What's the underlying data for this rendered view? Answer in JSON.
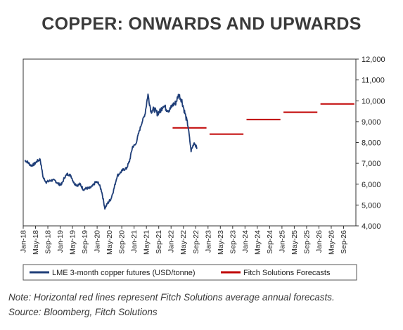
{
  "title": "COPPER: ONWARDS AND UPWARDS",
  "note_line1": "Note: Horizontal red lines represent Fitch Solutions average annual forecasts.",
  "note_line2": "Source: Bloomberg, Fitch Solutions",
  "chart_data": {
    "type": "line",
    "x_tick_labels": [
      "Jan-18",
      "May-18",
      "Sep-18",
      "Jan-19",
      "May-19",
      "Sep-19",
      "Jan-20",
      "May-20",
      "Sep-20",
      "Jan-21",
      "May-21",
      "Sep-21",
      "Jan-22",
      "May-22",
      "Sep-22",
      "Jan-23",
      "May-23",
      "Sep-23",
      "Jan-24",
      "May-24",
      "Sep-24",
      "Jan-25",
      "May-25",
      "Sep-25",
      "Jan-26",
      "May-26",
      "Sep-26"
    ],
    "y_tick_labels": [
      "4,000",
      "5,000",
      "6,000",
      "7,000",
      "8,000",
      "9,000",
      "10,000",
      "11,000",
      "12,000"
    ],
    "y_axis_position": "right",
    "ylim": [
      4000,
      12000
    ],
    "xlim": [
      "2018-01",
      "2026-12"
    ],
    "grid": false,
    "legend_position": "bottom",
    "series": [
      {
        "name": "LME 3-month copper futures (USD/tonne)",
        "color": "#1f3e78",
        "points": [
          [
            "2018-01",
            7150
          ],
          [
            "2018-02",
            7050
          ],
          [
            "2018-03",
            6900
          ],
          [
            "2018-04",
            6950
          ],
          [
            "2018-05",
            7100
          ],
          [
            "2018-06",
            7200
          ],
          [
            "2018-07",
            6300
          ],
          [
            "2018-08",
            6100
          ],
          [
            "2018-09",
            6150
          ],
          [
            "2018-10",
            6200
          ],
          [
            "2018-11",
            6150
          ],
          [
            "2018-12",
            6000
          ],
          [
            "2019-01",
            6000
          ],
          [
            "2019-02",
            6350
          ],
          [
            "2019-03",
            6500
          ],
          [
            "2019-04",
            6400
          ],
          [
            "2019-05",
            6050
          ],
          [
            "2019-06",
            5950
          ],
          [
            "2019-07",
            6000
          ],
          [
            "2019-08",
            5750
          ],
          [
            "2019-09",
            5800
          ],
          [
            "2019-10",
            5800
          ],
          [
            "2019-11",
            5900
          ],
          [
            "2019-12",
            6100
          ],
          [
            "2020-01",
            6050
          ],
          [
            "2020-02",
            5650
          ],
          [
            "2020-03",
            4850
          ],
          [
            "2020-04",
            5100
          ],
          [
            "2020-05",
            5300
          ],
          [
            "2020-06",
            5800
          ],
          [
            "2020-07",
            6400
          ],
          [
            "2020-08",
            6550
          ],
          [
            "2020-09",
            6700
          ],
          [
            "2020-10",
            6750
          ],
          [
            "2020-11",
            7100
          ],
          [
            "2020-12",
            7800
          ],
          [
            "2021-01",
            7900
          ],
          [
            "2021-02",
            8450
          ],
          [
            "2021-03",
            8950
          ],
          [
            "2021-04",
            9350
          ],
          [
            "2021-05",
            10300
          ],
          [
            "2021-06",
            9500
          ],
          [
            "2021-07",
            9600
          ],
          [
            "2021-08",
            9400
          ],
          [
            "2021-09",
            9500
          ],
          [
            "2021-10",
            9800
          ],
          [
            "2021-11",
            9600
          ],
          [
            "2021-12",
            9550
          ],
          [
            "2022-01",
            9800
          ],
          [
            "2022-02",
            9900
          ],
          [
            "2022-03",
            10300
          ],
          [
            "2022-04",
            10000
          ],
          [
            "2022-05",
            9400
          ],
          [
            "2022-06",
            8800
          ],
          [
            "2022-07",
            7600
          ],
          [
            "2022-08",
            8000
          ],
          [
            "2022-09",
            7700
          ]
        ]
      },
      {
        "name": "Fitch Solutions Forecasts",
        "color": "#c00000",
        "segments": [
          {
            "year": 2022,
            "value": 8700
          },
          {
            "year": 2023,
            "value": 8400
          },
          {
            "year": 2024,
            "value": 9100
          },
          {
            "year": 2025,
            "value": 9450
          },
          {
            "year": 2026,
            "value": 9850
          }
        ]
      }
    ]
  }
}
